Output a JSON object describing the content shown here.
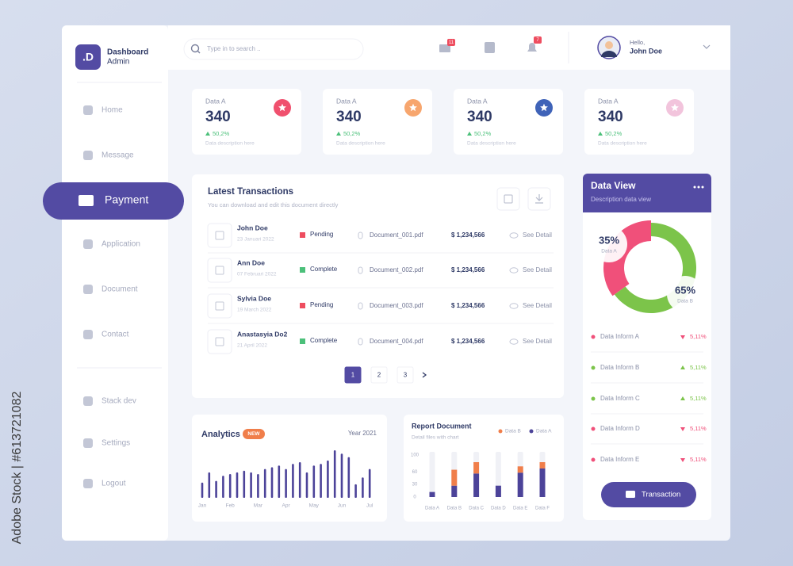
{
  "watermark": "Adobe Stock | #613721082",
  "brand": {
    "logo": ".D",
    "title": "Dashboard",
    "subtitle": "Admin"
  },
  "nav": [
    "Home",
    "Message",
    "Payment",
    "Application",
    "Document",
    "Contact",
    "Stack dev",
    "Settings",
    "Logout"
  ],
  "active_nav": 2,
  "search": "Type in to search ..",
  "badges": {
    "mail": 11,
    "bell": 7
  },
  "user": {
    "greeting": "Hello,",
    "name": "John Doe"
  },
  "stats": [
    {
      "label": "Data A",
      "value": 340,
      "change": "50,2%",
      "description": "Data description here",
      "color": "#f0506e"
    },
    {
      "label": "Data A",
      "value": 340,
      "change": "50,2%",
      "description": "Data description here",
      "color": "#f7a66e"
    },
    {
      "label": "Data A",
      "value": 340,
      "change": "50,2%",
      "description": "Data description here",
      "color": "#3f63b8"
    },
    {
      "label": "Data A",
      "value": 340,
      "change": "50,2%",
      "description": "Data description here",
      "color": "#f2c4dc"
    }
  ],
  "transactions": {
    "title": "Latest Transactions",
    "subtitle": "You can download and edit this document directly",
    "rows": [
      {
        "name": "John Doe",
        "date": "23 Januari 2022",
        "status": "Pending",
        "status_color": "#ee4d5f",
        "file": "Document_001.pdf",
        "amount": "$ 1,234,566",
        "action": "See Detail"
      },
      {
        "name": "Ann Doe",
        "date": "07 Februari 2022",
        "status": "Complete",
        "status_color": "#4cc07a",
        "file": "Document_002.pdf",
        "amount": "$ 1,234,566",
        "action": "See Detail"
      },
      {
        "name": "Sylvia Doe",
        "date": "19 March 2022",
        "status": "Pending",
        "status_color": "#ee4d5f",
        "file": "Document_003.pdf",
        "amount": "$ 1,234,566",
        "action": "See Detail"
      },
      {
        "name": "Anastasyia Do2",
        "date": "21 April 2022",
        "status": "Complete",
        "status_color": "#4cc07a",
        "file": "Document_004.pdf",
        "amount": "$ 1,234,566",
        "action": "See Detail"
      }
    ],
    "pages": [
      1,
      2,
      3
    ],
    "current_page": 0
  },
  "inform": [
    {
      "label": "Data Inform A",
      "change": "5,11%",
      "trend": "down",
      "color": "#f0507a"
    },
    {
      "label": "Data Inform B",
      "change": "5,11%",
      "trend": "up",
      "color": "#7cc44a"
    },
    {
      "label": "Data Inform C",
      "change": "5,11%",
      "trend": "up",
      "color": "#7cc44a"
    },
    {
      "label": "Data Inform D",
      "change": "5,11%",
      "trend": "down",
      "color": "#f0507a"
    },
    {
      "label": "Data Inform E",
      "change": "5,11%",
      "trend": "down",
      "color": "#f0507a"
    }
  ],
  "button": "Transaction",
  "chart_data": [
    {
      "type": "donut",
      "title": "Data View",
      "subtitle": "Description data view",
      "categories": [
        "Data A",
        "Data B"
      ],
      "values": [
        35,
        65
      ],
      "value_labels": [
        "35%",
        "65%"
      ],
      "colors": [
        "#f0507a",
        "#7cc44a"
      ]
    },
    {
      "type": "bar",
      "title": "Analytics",
      "badge": "NEW",
      "period": "Year 2021",
      "categories": [
        "Jan",
        null,
        null,
        null,
        "Feb",
        null,
        null,
        null,
        "Mar",
        null,
        null,
        null,
        "Apr",
        null,
        null,
        null,
        "May",
        null,
        null,
        null,
        "Jun",
        null,
        null,
        null,
        "Jul"
      ],
      "values": [
        18,
        30,
        20,
        26,
        28,
        30,
        32,
        30,
        28,
        34,
        36,
        38,
        34,
        40,
        42,
        30,
        38,
        40,
        44,
        56,
        52,
        48,
        16,
        24,
        34
      ],
      "color": "#4c4399"
    },
    {
      "type": "stacked_bar",
      "title": "Report Document",
      "subtitle": "Detail files with chart",
      "categories": [
        "Data A",
        "Data B",
        "Data C",
        "Data D",
        "Data E",
        "Data F"
      ],
      "series": [
        {
          "name": "Data A",
          "color": "#4c4399",
          "values": [
            12,
            27,
            56,
            27,
            58,
            68
          ]
        },
        {
          "name": "Data B",
          "color": "#f07e4a",
          "values": [
            0,
            38,
            27,
            0,
            15,
            15
          ]
        }
      ],
      "ylim": [
        0,
        100
      ],
      "yticks": [
        0,
        30,
        60,
        100
      ]
    }
  ]
}
